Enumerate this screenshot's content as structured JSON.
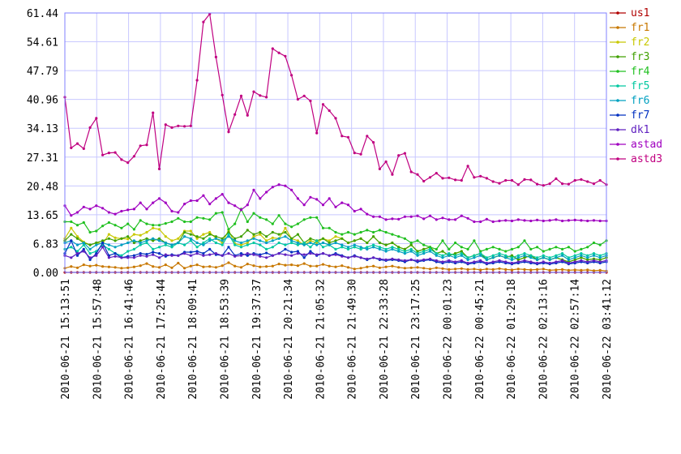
{
  "chart_data": {
    "type": "line",
    "grid": true,
    "legend_position": "right",
    "y_ticks": [
      "0.00",
      "6.83",
      "13.65",
      "20.48",
      "27.31",
      "34.13",
      "40.96",
      "47.79",
      "54.61",
      "61.44"
    ],
    "ylim": [
      0,
      61.44
    ],
    "x_labels": [
      "2010-06-21 15:13:51",
      "2010-06-21 15:57:48",
      "2010-06-21 16:41:46",
      "2010-06-21 17:25:44",
      "2010-06-21 18:09:41",
      "2010-06-21 18:53:39",
      "2010-06-21 19:37:37",
      "2010-06-21 20:21:34",
      "2010-06-21 21:05:32",
      "2010-06-21 21:49:30",
      "2010-06-21 22:33:28",
      "2010-06-21 23:17:25",
      "2010-06-22 00:01:23",
      "2010-06-22 00:45:21",
      "2010-06-22 01:29:18",
      "2010-06-22 02:13:16",
      "2010-06-22 02:57:14",
      "2010-06-22 03:41:12"
    ],
    "series": [
      {
        "name": "us1",
        "color": "#b00000",
        "values": [
          0,
          0,
          0,
          0,
          0,
          0,
          0,
          0,
          0,
          0,
          0,
          0,
          0,
          0,
          0,
          0,
          0,
          0,
          0,
          0,
          0,
          0,
          0,
          0,
          0,
          0,
          0,
          0,
          0,
          0,
          0,
          0,
          0,
          0,
          0,
          0,
          0,
          0,
          0,
          0,
          0,
          0,
          0,
          0,
          0,
          0,
          0,
          0,
          0,
          0,
          0,
          0,
          0,
          0,
          0,
          0,
          0,
          0,
          0,
          0,
          0,
          0,
          0,
          0,
          0,
          0,
          0,
          0,
          0,
          0,
          0,
          0,
          0,
          0,
          0,
          0,
          0,
          0,
          0,
          0,
          0,
          0,
          0,
          0,
          0,
          0,
          0
        ]
      },
      {
        "name": "fr1",
        "color": "#c87800",
        "values": [
          1.0,
          1.4,
          1.1,
          1.8,
          1.5,
          1.7,
          1.4,
          1.3,
          1.2,
          1.0,
          1.1,
          1.3,
          1.6,
          2.1,
          1.4,
          1.2,
          1.8,
          1.1,
          2.2,
          1.0,
          1.5,
          1.8,
          1.3,
          1.4,
          1.2,
          1.6,
          2.3,
          1.5,
          1.2,
          2.0,
          1.6,
          1.3,
          1.4,
          1.5,
          2.0,
          1.7,
          1.8,
          1.6,
          2.1,
          1.5,
          1.5,
          1.9,
          1.5,
          1.3,
          1.6,
          1.2,
          0.8,
          1.0,
          1.3,
          1.5,
          1.1,
          1.3,
          1.5,
          1.2,
          1.0,
          1.1,
          1.2,
          1.0,
          0.8,
          1.1,
          0.9,
          0.7,
          0.8,
          0.9,
          0.7,
          0.8,
          0.6,
          0.8,
          0.7,
          0.9,
          0.7,
          0.6,
          0.8,
          0.7,
          0.6,
          0.7,
          0.8,
          0.5,
          0.6,
          0.7,
          0.5,
          0.6,
          0.5,
          0.6,
          0.4,
          0.5,
          0.3
        ]
      },
      {
        "name": "fr2",
        "color": "#c8c800",
        "values": [
          8.0,
          10.5,
          8.5,
          7.2,
          6.5,
          7.0,
          6.8,
          9.0,
          8.2,
          8.0,
          7.9,
          9.0,
          8.8,
          9.5,
          10.5,
          10.2,
          8.5,
          7.5,
          8.0,
          9.8,
          9.8,
          8.0,
          9.0,
          9.5,
          8.0,
          7.0,
          10.0,
          6.8,
          6.5,
          7.0,
          8.5,
          9.0,
          7.5,
          8.2,
          8.0,
          10.5,
          8.0,
          7.5,
          6.5,
          7.5,
          7.0,
          8.0,
          7.5,
          8.5,
          8.0,
          7.0,
          7.5,
          8.0,
          7.0,
          8.5,
          7.0,
          6.5,
          7.0,
          6.0,
          5.5,
          6.5,
          5.0,
          5.5,
          6.0,
          4.5,
          5.0,
          4.0,
          4.5,
          5.0,
          3.5,
          4.0,
          4.5,
          3.0,
          3.5,
          4.0,
          3.5,
          4.0,
          3.0,
          3.5,
          4.0,
          3.0,
          3.5,
          3.0,
          3.5,
          3.0,
          2.5,
          3.0,
          3.5,
          3.0,
          3.2,
          3.0,
          3.5
        ]
      },
      {
        "name": "fr3",
        "color": "#40a000",
        "values": [
          7.5,
          9.0,
          8.0,
          7.0,
          6.5,
          7.0,
          7.5,
          8.0,
          7.5,
          8.0,
          8.5,
          7.0,
          7.5,
          8.0,
          7.5,
          8.0,
          7.0,
          6.5,
          7.0,
          9.5,
          9.0,
          8.5,
          8.0,
          9.0,
          8.5,
          8.0,
          9.5,
          8.0,
          8.5,
          10.0,
          9.0,
          9.5,
          8.5,
          9.5,
          9.0,
          9.5,
          8.0,
          9.0,
          7.0,
          8.0,
          7.5,
          8.0,
          7.0,
          7.5,
          8.0,
          7.0,
          7.5,
          8.0,
          7.0,
          8.5,
          7.0,
          6.5,
          7.0,
          6.0,
          5.5,
          6.5,
          5.0,
          5.5,
          6.0,
          4.5,
          5.0,
          4.0,
          4.5,
          5.0,
          3.5,
          4.0,
          4.5,
          3.0,
          3.5,
          4.0,
          3.5,
          4.0,
          3.0,
          3.5,
          4.0,
          3.0,
          3.5,
          3.0,
          3.5,
          3.0,
          2.5,
          3.0,
          3.5,
          3.0,
          3.2,
          3.0,
          3.5
        ]
      },
      {
        "name": "fr4",
        "color": "#20c020",
        "values": [
          12.0,
          12.0,
          11.2,
          11.8,
          9.5,
          9.8,
          11.0,
          11.8,
          11.2,
          10.5,
          11.5,
          10.2,
          12.3,
          11.5,
          11.2,
          11.2,
          11.6,
          12.0,
          12.8,
          12.0,
          12.0,
          13.0,
          12.8,
          12.5,
          14.0,
          14.2,
          10.2,
          11.5,
          15.0,
          12.0,
          14.0,
          13.0,
          12.5,
          11.5,
          13.5,
          11.5,
          10.8,
          11.5,
          12.5,
          13.0,
          13.0,
          10.5,
          10.5,
          9.5,
          9.0,
          9.5,
          9.0,
          9.5,
          10.0,
          9.5,
          10.0,
          9.5,
          9.0,
          8.5,
          8.0,
          7.0,
          7.5,
          6.5,
          6.0,
          5.5,
          7.5,
          5.5,
          7.0,
          6.0,
          5.5,
          7.5,
          5.0,
          5.5,
          6.0,
          5.5,
          5.0,
          5.5,
          6.0,
          7.5,
          5.5,
          6.0,
          5.0,
          5.5,
          6.0,
          5.5,
          6.0,
          5.0,
          5.5,
          6.0,
          7.0,
          6.5,
          7.5
        ]
      },
      {
        "name": "fr5",
        "color": "#00c8a0",
        "values": [
          5.5,
          6.0,
          5.0,
          6.5,
          4.5,
          5.0,
          6.5,
          5.5,
          4.5,
          4.0,
          5.0,
          5.5,
          6.5,
          7.0,
          5.5,
          6.0,
          6.5,
          6.0,
          7.0,
          6.5,
          7.5,
          6.0,
          7.0,
          8.0,
          7.0,
          6.5,
          9.0,
          6.5,
          6.0,
          6.5,
          7.0,
          6.5,
          5.5,
          6.0,
          7.0,
          6.5,
          7.0,
          6.5,
          7.0,
          6.0,
          7.5,
          6.0,
          6.5,
          5.5,
          6.0,
          5.5,
          6.0,
          5.5,
          6.0,
          6.5,
          6.0,
          5.5,
          6.0,
          5.5,
          5.0,
          5.5,
          4.5,
          5.0,
          5.5,
          4.5,
          4.0,
          4.5,
          4.0,
          4.5,
          3.5,
          4.0,
          4.5,
          3.5,
          4.0,
          4.5,
          4.0,
          3.5,
          4.0,
          4.5,
          4.0,
          3.5,
          4.0,
          3.5,
          4.0,
          4.5,
          3.5,
          4.0,
          4.5,
          4.0,
          4.5,
          4.0,
          4.5
        ]
      },
      {
        "name": "fr6",
        "color": "#00a0c0",
        "values": [
          7.0,
          7.5,
          6.5,
          7.0,
          5.5,
          6.5,
          7.0,
          6.5,
          6.0,
          6.5,
          7.0,
          7.5,
          7.0,
          7.5,
          8.0,
          7.5,
          7.0,
          6.5,
          7.0,
          8.5,
          8.0,
          7.0,
          6.5,
          7.5,
          8.0,
          7.5,
          8.5,
          7.5,
          7.0,
          7.5,
          8.0,
          7.5,
          7.0,
          7.5,
          8.0,
          8.5,
          7.5,
          7.0,
          6.5,
          7.0,
          6.5,
          7.0,
          6.5,
          7.0,
          6.5,
          6.0,
          6.5,
          6.0,
          5.5,
          6.0,
          5.5,
          5.0,
          5.5,
          5.0,
          4.5,
          5.0,
          4.0,
          4.5,
          5.0,
          4.0,
          3.5,
          4.0,
          3.5,
          4.0,
          3.0,
          3.5,
          4.0,
          3.0,
          3.5,
          4.0,
          3.5,
          3.0,
          3.5,
          4.0,
          3.5,
          3.0,
          3.5,
          3.0,
          3.5,
          4.0,
          3.0,
          3.5,
          4.0,
          3.5,
          4.0,
          3.5,
          4.0
        ]
      },
      {
        "name": "fr7",
        "color": "#0030c0",
        "values": [
          4.5,
          7.5,
          4.0,
          5.5,
          3.0,
          4.5,
          7.0,
          4.0,
          4.5,
          3.5,
          3.8,
          4.0,
          4.5,
          4.3,
          4.8,
          4.5,
          3.8,
          4.2,
          4.0,
          4.8,
          4.8,
          5.0,
          4.5,
          5.5,
          4.2,
          4.0,
          6.0,
          4.0,
          4.5,
          4.0,
          4.5,
          4.2,
          4.6,
          4.0,
          4.5,
          5.5,
          4.8,
          5.0,
          3.5,
          5.0,
          4.0,
          4.5,
          4.0,
          4.5,
          4.0,
          3.5,
          4.0,
          3.5,
          3.0,
          3.5,
          3.0,
          2.8,
          3.0,
          2.8,
          2.5,
          3.0,
          2.5,
          2.8,
          3.0,
          2.5,
          2.2,
          2.5,
          2.2,
          2.5,
          2.0,
          2.2,
          2.5,
          2.0,
          2.2,
          2.5,
          2.2,
          2.0,
          2.2,
          2.5,
          2.2,
          2.0,
          2.2,
          2.0,
          2.2,
          2.5,
          2.0,
          2.2,
          2.5,
          2.2,
          2.5,
          2.2,
          2.5
        ]
      },
      {
        "name": "dk1",
        "color": "#6020c0",
        "values": [
          4.0,
          3.5,
          4.5,
          5.0,
          3.5,
          4.0,
          6.0,
          3.5,
          3.8,
          3.5,
          3.5,
          3.5,
          4.0,
          3.8,
          4.2,
          3.5,
          4.2,
          4.0,
          4.0,
          4.5,
          4.0,
          4.5,
          4.0,
          4.2,
          4.5,
          4.0,
          4.5,
          3.8,
          4.0,
          4.5,
          4.2,
          3.8,
          3.5,
          4.0,
          4.5,
          4.2,
          4.0,
          4.5,
          4.2,
          4.5,
          4.2,
          4.5,
          4.0,
          4.2,
          3.8,
          3.5,
          3.8,
          3.5,
          3.2,
          3.5,
          3.2,
          3.0,
          3.2,
          3.0,
          2.8,
          3.0,
          2.8,
          3.0,
          3.2,
          2.8,
          2.5,
          2.8,
          2.5,
          2.8,
          2.2,
          2.5,
          2.8,
          2.2,
          2.5,
          2.8,
          2.5,
          2.2,
          2.5,
          2.8,
          2.5,
          2.2,
          2.5,
          2.2,
          2.5,
          2.8,
          2.2,
          2.5,
          2.8,
          2.5,
          2.8,
          2.5,
          2.8
        ]
      },
      {
        "name": "astad",
        "color": "#a000c0",
        "values": [
          15.8,
          13.5,
          14.2,
          15.5,
          15.0,
          15.8,
          15.2,
          14.2,
          13.8,
          14.5,
          14.8,
          15.0,
          16.5,
          15.0,
          16.5,
          17.5,
          16.5,
          14.5,
          14.2,
          16.2,
          17.0,
          17.0,
          18.2,
          16.2,
          17.5,
          18.5,
          16.5,
          15.8,
          14.8,
          16.0,
          19.5,
          17.5,
          19.0,
          20.2,
          20.8,
          20.5,
          19.5,
          17.5,
          16.0,
          17.8,
          17.3,
          16.0,
          17.5,
          15.5,
          16.5,
          16.0,
          14.5,
          15.0,
          13.8,
          13.2,
          13.2,
          12.5,
          12.7,
          12.6,
          13.2,
          13.2,
          13.4,
          12.7,
          13.4,
          12.5,
          12.9,
          12.5,
          12.5,
          13.4,
          12.8,
          12.0,
          12.0,
          12.6,
          12.0,
          12.2,
          12.3,
          12.2,
          12.5,
          12.3,
          12.2,
          12.4,
          12.2,
          12.3,
          12.5,
          12.2,
          12.3,
          12.4,
          12.3,
          12.2,
          12.3,
          12.2,
          12.2
        ]
      },
      {
        "name": "astd3",
        "color": "#c00080",
        "values": [
          41.5,
          29.5,
          30.5,
          29.3,
          34.3,
          36.5,
          27.8,
          28.3,
          28.4,
          26.7,
          26.0,
          27.5,
          30.0,
          30.2,
          37.8,
          24.5,
          35.0,
          34.3,
          34.7,
          34.6,
          34.7,
          45.5,
          59.3,
          61.2,
          51.0,
          42.0,
          33.3,
          37.4,
          41.8,
          37.2,
          42.8,
          41.9,
          41.5,
          53.0,
          52.0,
          51.2,
          46.7,
          41.0,
          41.8,
          40.6,
          33.0,
          39.8,
          38.3,
          36.5,
          32.3,
          32.0,
          28.3,
          28.0,
          32.3,
          30.8,
          24.5,
          26.2,
          23.2,
          27.7,
          28.2,
          23.8,
          23.2,
          21.6,
          22.5,
          23.5,
          22.3,
          22.4,
          21.9,
          21.8,
          25.2,
          22.5,
          22.8,
          22.3,
          21.5,
          21.1,
          21.8,
          21.8,
          20.8,
          22.0,
          21.9,
          20.9,
          20.6,
          21.0,
          22.2,
          21.0,
          20.9,
          21.8,
          22.0,
          21.5,
          21.0,
          21.8,
          20.8
        ]
      }
    ]
  }
}
